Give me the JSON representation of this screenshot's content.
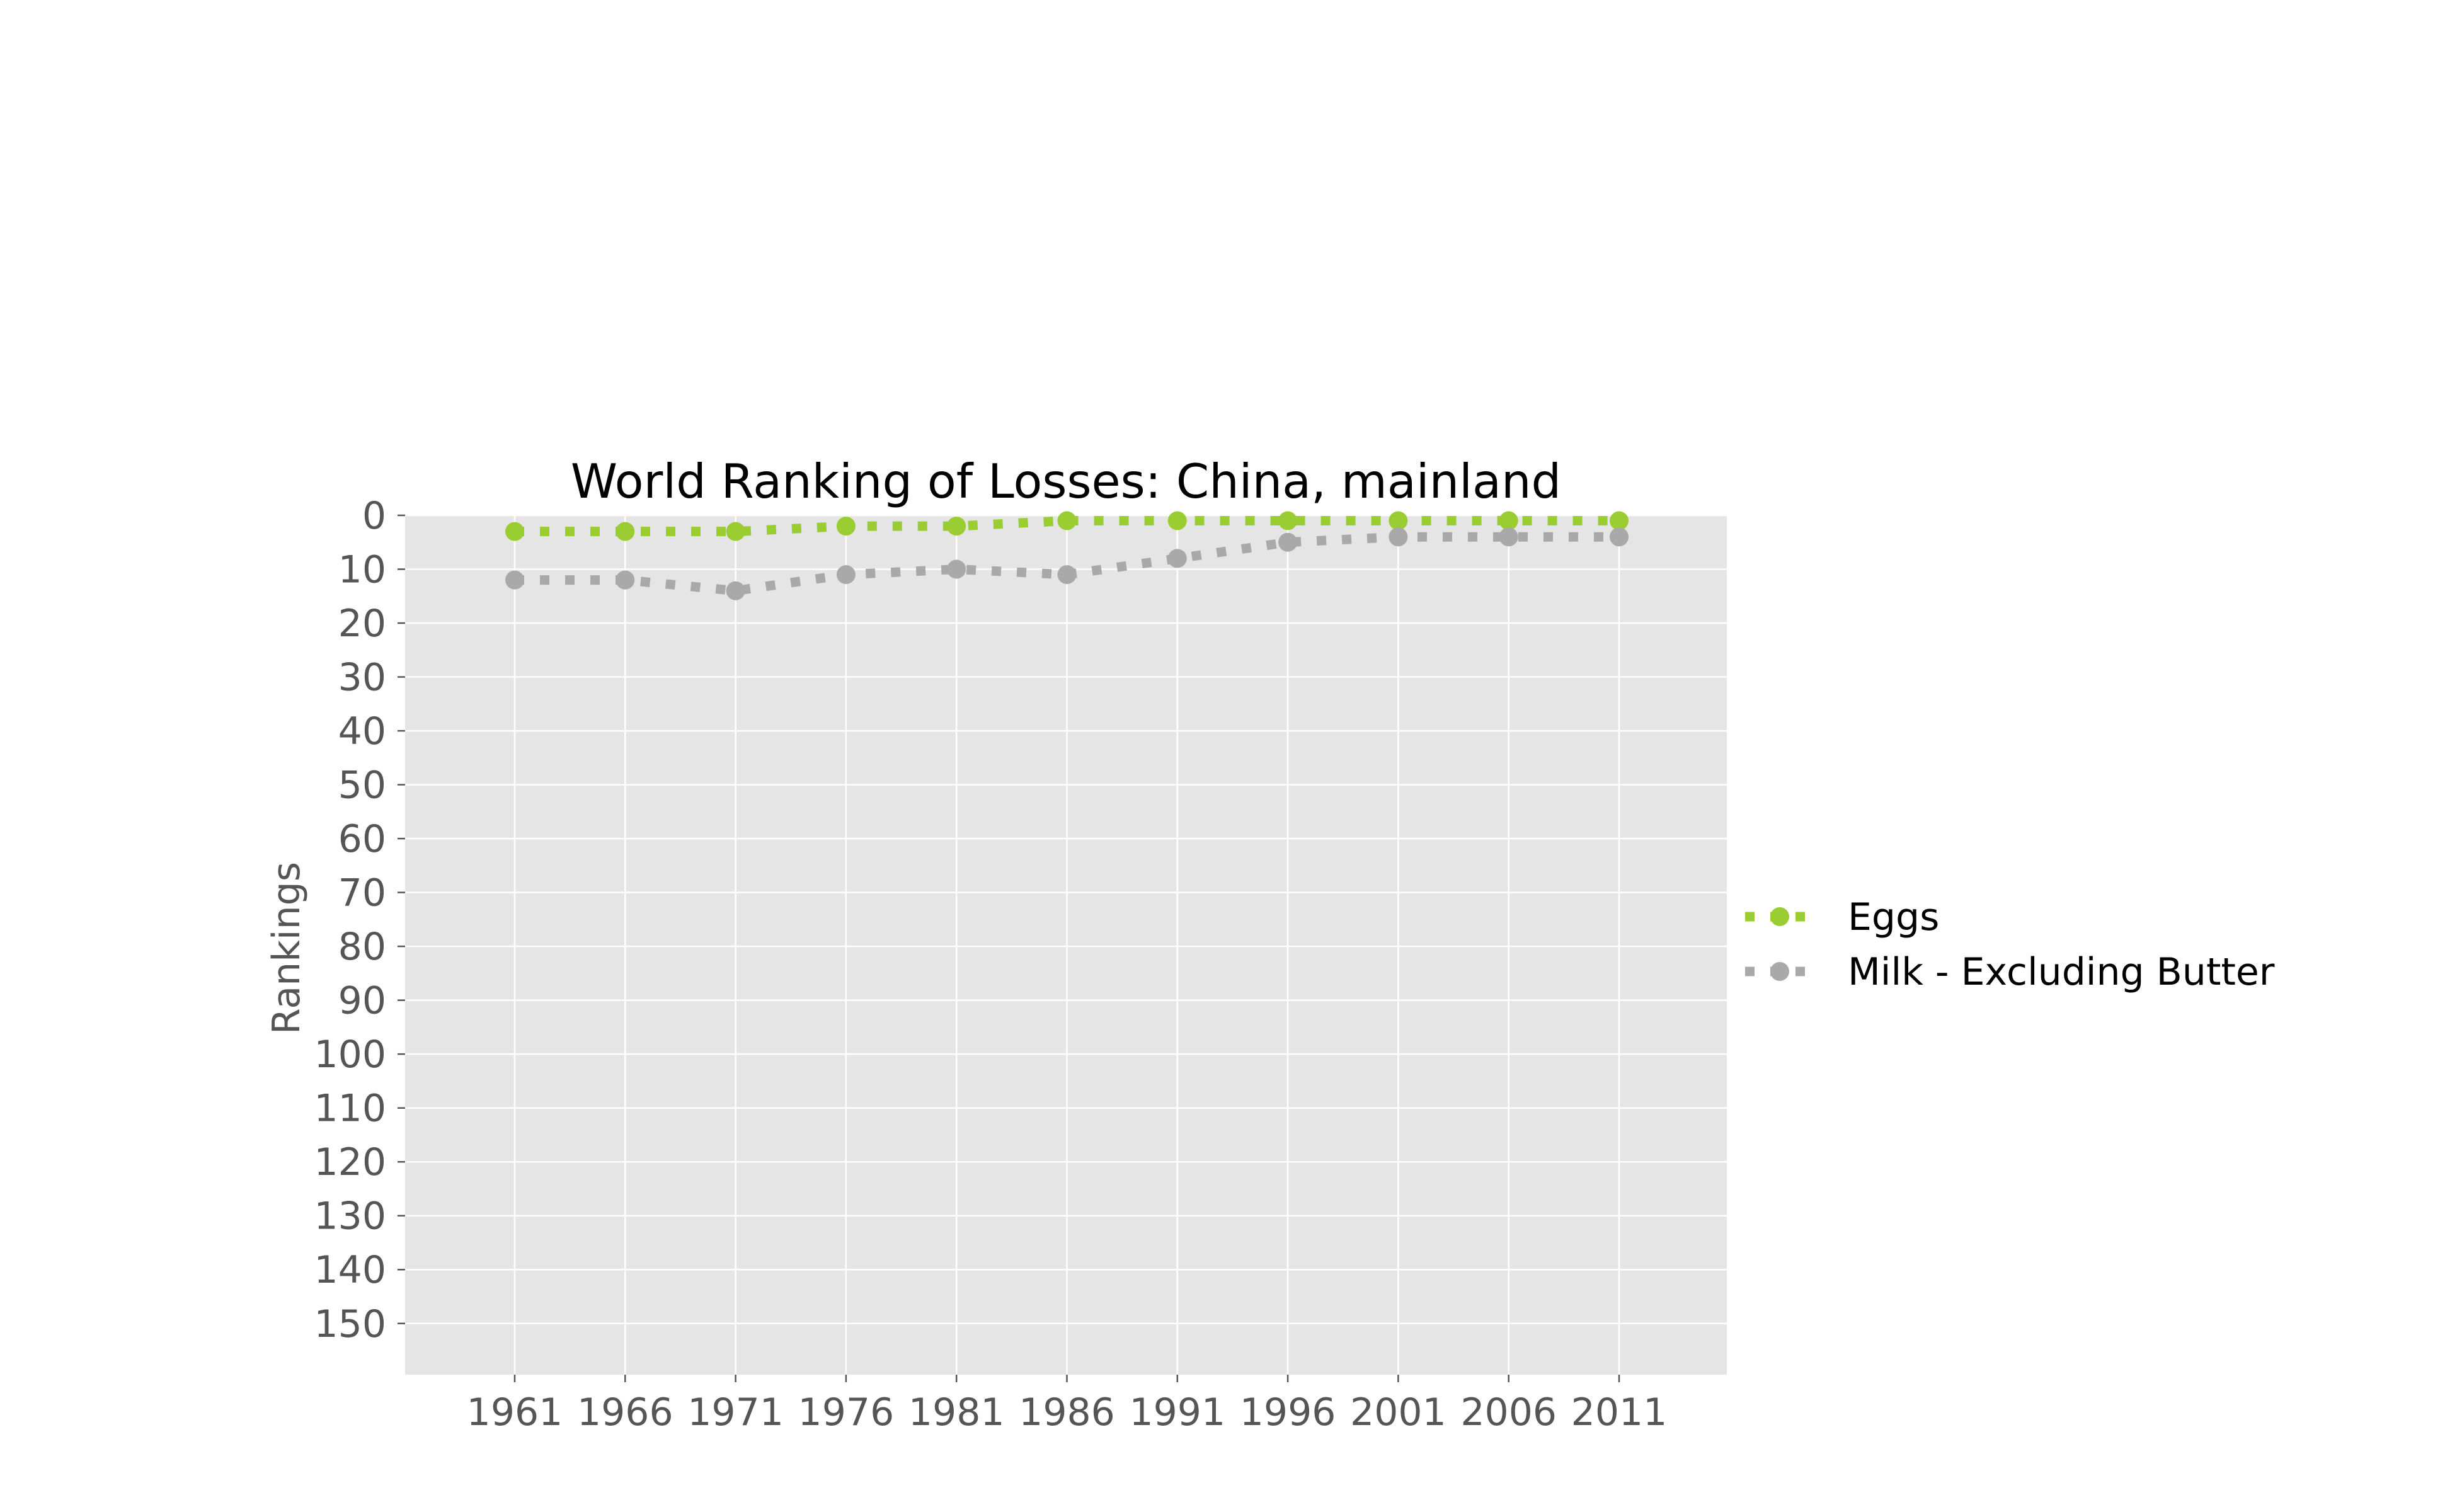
{
  "chart_data": {
    "type": "line",
    "title": "World Ranking of Losses: China, mainland",
    "xlabel": "",
    "ylabel": "Rankings",
    "x": [
      1961,
      1966,
      1971,
      1976,
      1981,
      1986,
      1991,
      1996,
      2001,
      2006,
      2011
    ],
    "x_ticks": [
      "1961",
      "1966",
      "1971",
      "1976",
      "1981",
      "1986",
      "1991",
      "1996",
      "2001",
      "2006",
      "2011"
    ],
    "y_ticks": [
      "0",
      "10",
      "20",
      "30",
      "40",
      "50",
      "60",
      "70",
      "80",
      "90",
      "100",
      "110",
      "120",
      "130",
      "140",
      "150"
    ],
    "ylim": [
      159.5,
      0
    ],
    "y_inverted": true,
    "grid": true,
    "legend_position": "center-right outside",
    "series": [
      {
        "name": "Eggs",
        "color": "#9ACD32",
        "values": [
          3,
          3,
          3,
          2,
          2,
          1,
          1,
          1,
          1,
          1,
          1
        ]
      },
      {
        "name": "Milk - Excluding Butter",
        "color": "#A9A9A9",
        "values": [
          12,
          12,
          14,
          11,
          10,
          11,
          8,
          5,
          4,
          4,
          4
        ]
      }
    ]
  }
}
